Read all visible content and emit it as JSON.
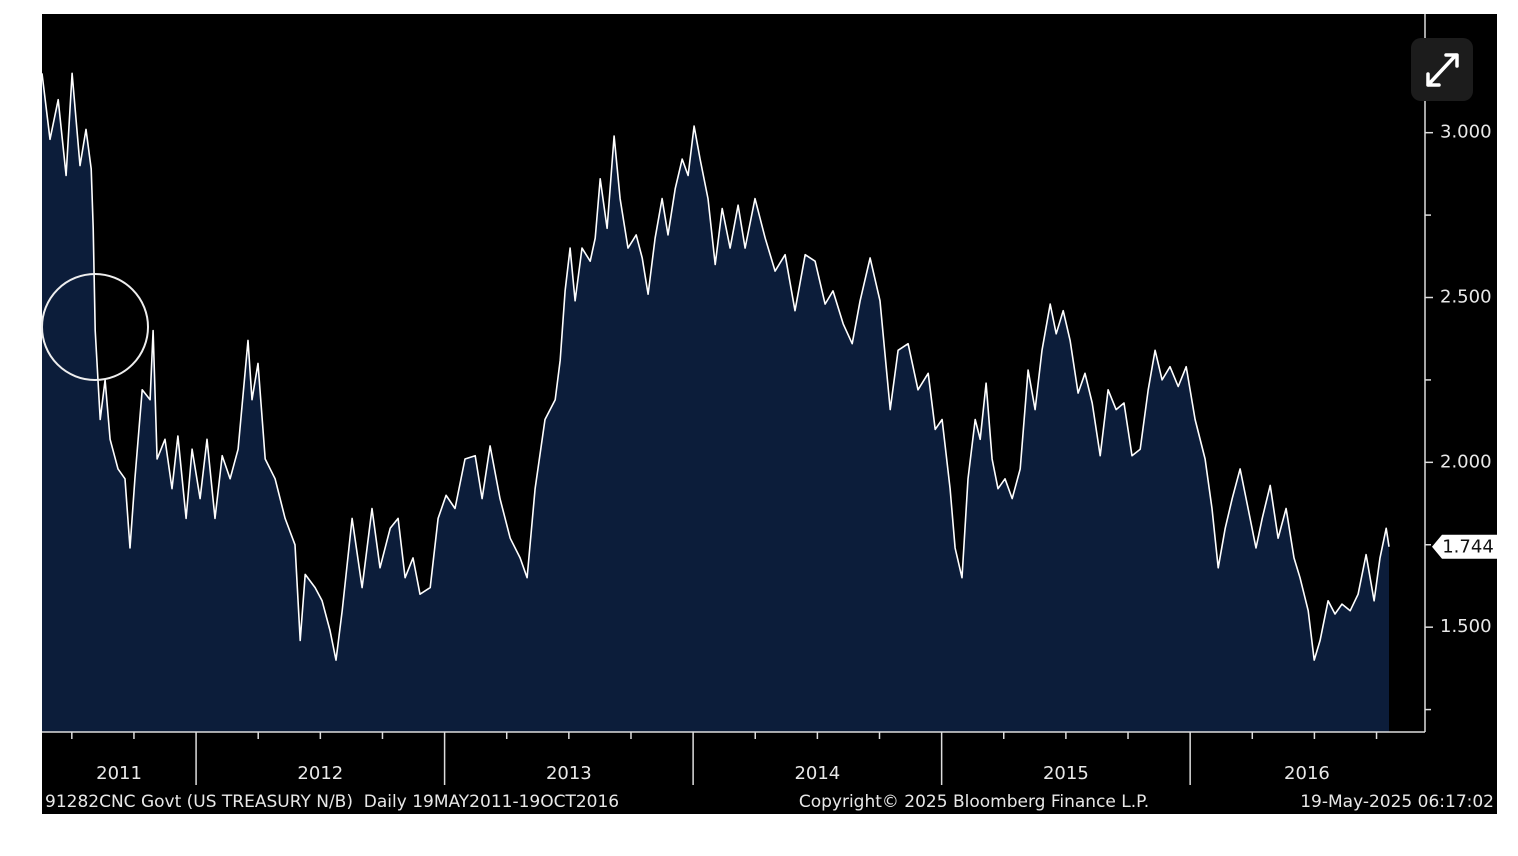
{
  "chart_data": {
    "type": "area",
    "series": [
      {
        "color": "#ffffff",
        "fill": "#0c1d3a",
        "x": [
          2011.38,
          2011.412,
          2011.445,
          2011.477,
          2011.501,
          2011.533,
          2011.557,
          2011.578,
          2011.586,
          2011.594,
          2011.614,
          2011.634,
          2011.654,
          2011.686,
          2011.714,
          2011.734,
          2011.754,
          2011.783,
          2011.815,
          2011.827,
          2011.843,
          2011.875,
          2011.903,
          2011.927,
          2011.96,
          2011.984,
          2012.016,
          2012.044,
          2012.076,
          2012.105,
          2012.137,
          2012.169,
          2012.209,
          2012.225,
          2012.249,
          2012.278,
          2012.318,
          2012.358,
          2012.398,
          2012.419,
          2012.439,
          2012.479,
          2012.507,
          2012.539,
          2012.563,
          2012.588,
          2012.628,
          2012.668,
          2012.708,
          2012.74,
          2012.781,
          2012.813,
          2012.841,
          2012.873,
          2012.901,
          2012.942,
          2012.974,
          2013.006,
          2013.042,
          2013.082,
          2013.123,
          2013.151,
          2013.183,
          2013.223,
          2013.264,
          2013.304,
          2013.332,
          2013.364,
          2013.404,
          2013.445,
          2013.465,
          2013.485,
          2013.505,
          2013.525,
          2013.553,
          2013.586,
          2013.606,
          2013.626,
          2013.654,
          2013.682,
          2013.706,
          2013.738,
          2013.771,
          2013.795,
          2013.819,
          2013.847,
          2013.875,
          2013.899,
          2013.928,
          2013.956,
          2013.98,
          2014.004,
          2014.028,
          2014.06,
          2014.089,
          2014.117,
          2014.149,
          2014.181,
          2014.209,
          2014.249,
          2014.29,
          2014.33,
          2014.37,
          2014.41,
          2014.451,
          2014.491,
          2014.531,
          2014.563,
          2014.604,
          2014.64,
          2014.672,
          2014.712,
          2014.752,
          2014.793,
          2014.825,
          2014.865,
          2014.905,
          2014.946,
          2014.974,
          2015.002,
          2015.034,
          2015.054,
          2015.082,
          2015.106,
          2015.135,
          2015.155,
          2015.179,
          2015.203,
          2015.227,
          2015.255,
          2015.284,
          2015.316,
          2015.348,
          2015.376,
          2015.404,
          2015.437,
          2015.461,
          2015.489,
          2015.517,
          2015.549,
          2015.577,
          2015.606,
          2015.638,
          2015.67,
          2015.702,
          2015.734,
          2015.766,
          2015.799,
          2015.831,
          2015.859,
          2015.887,
          2015.919,
          2015.952,
          2015.984,
          2016.02,
          2016.06,
          2016.088,
          2016.113,
          2016.141,
          2016.169,
          2016.201,
          2016.233,
          2016.265,
          2016.29,
          2016.322,
          2016.354,
          2016.386,
          2016.418,
          2016.442,
          2016.475,
          2016.499,
          2016.523,
          2016.555,
          2016.583,
          2016.611,
          2016.644,
          2016.676,
          2016.708,
          2016.74,
          2016.764,
          2016.789,
          2016.8
        ],
        "values": [
          3.18,
          2.98,
          3.1,
          2.87,
          3.18,
          2.9,
          3.01,
          2.89,
          2.71,
          2.4,
          2.13,
          2.25,
          2.07,
          1.98,
          1.95,
          1.74,
          1.95,
          2.22,
          2.19,
          2.4,
          2.01,
          2.07,
          1.92,
          2.08,
          1.83,
          2.04,
          1.89,
          2.07,
          1.83,
          2.02,
          1.95,
          2.04,
          2.37,
          2.19,
          2.3,
          2.01,
          1.95,
          1.83,
          1.75,
          1.46,
          1.66,
          1.62,
          1.58,
          1.49,
          1.4,
          1.55,
          1.83,
          1.62,
          1.86,
          1.68,
          1.8,
          1.83,
          1.65,
          1.71,
          1.6,
          1.62,
          1.83,
          1.9,
          1.86,
          2.01,
          2.02,
          1.89,
          2.05,
          1.89,
          1.77,
          1.71,
          1.65,
          1.92,
          2.13,
          2.19,
          2.31,
          2.52,
          2.65,
          2.49,
          2.65,
          2.61,
          2.68,
          2.86,
          2.71,
          2.99,
          2.8,
          2.65,
          2.69,
          2.62,
          2.51,
          2.68,
          2.8,
          2.69,
          2.83,
          2.92,
          2.87,
          3.02,
          2.92,
          2.8,
          2.6,
          2.77,
          2.65,
          2.78,
          2.65,
          2.8,
          2.68,
          2.58,
          2.63,
          2.46,
          2.63,
          2.61,
          2.48,
          2.52,
          2.42,
          2.36,
          2.49,
          2.62,
          2.49,
          2.16,
          2.34,
          2.36,
          2.22,
          2.27,
          2.1,
          2.13,
          1.92,
          1.74,
          1.65,
          1.95,
          2.13,
          2.07,
          2.24,
          2.01,
          1.92,
          1.95,
          1.89,
          1.98,
          2.28,
          2.16,
          2.34,
          2.48,
          2.39,
          2.46,
          2.37,
          2.21,
          2.27,
          2.18,
          2.02,
          2.22,
          2.16,
          2.18,
          2.02,
          2.04,
          2.22,
          2.34,
          2.25,
          2.29,
          2.23,
          2.29,
          2.13,
          2.01,
          1.86,
          1.68,
          1.8,
          1.89,
          1.98,
          1.86,
          1.74,
          1.83,
          1.93,
          1.77,
          1.86,
          1.71,
          1.65,
          1.55,
          1.4,
          1.46,
          1.58,
          1.54,
          1.57,
          1.55,
          1.6,
          1.72,
          1.58,
          1.71,
          1.8,
          1.744
        ]
      }
    ],
    "last_label": "1.744",
    "xlim": [
      2011.38,
      2016.945
    ],
    "ylim": [
      1.182,
      3.36
    ],
    "xticks": [
      2012,
      2013,
      2014,
      2015,
      2016
    ],
    "xminorticks": [
      2011.5,
      2011.75,
      2012.25,
      2012.5,
      2012.75,
      2013.25,
      2013.5,
      2013.75,
      2014.25,
      2014.5,
      2014.75,
      2015.25,
      2015.5,
      2015.75,
      2016.25,
      2016.5,
      2016.75
    ],
    "xlabels": [
      {
        "value": 2011.69,
        "label": "2011"
      },
      {
        "value": 2012.5,
        "label": "2012"
      },
      {
        "value": 2013.5,
        "label": "2013"
      },
      {
        "value": 2014.5,
        "label": "2014"
      },
      {
        "value": 2015.5,
        "label": "2015"
      },
      {
        "value": 2016.47,
        "label": "2016"
      }
    ],
    "yticks": [
      {
        "value": 1.5,
        "label": "1.500"
      },
      {
        "value": 2,
        "label": "2.000"
      },
      {
        "value": 2.5,
        "label": "2.500"
      },
      {
        "value": 3,
        "label": "3.000"
      }
    ],
    "yminorticks": [
      1.25,
      1.75,
      2.25,
      2.75
    ],
    "footer": {
      "left": "91282CNC Govt (US TREASURY N/B)  Daily 19MAY2011-19OCT2016",
      "center": "Copyright© 2025 Bloomberg Finance L.P.",
      "right": "19-May-2025 06:17:02"
    }
  }
}
